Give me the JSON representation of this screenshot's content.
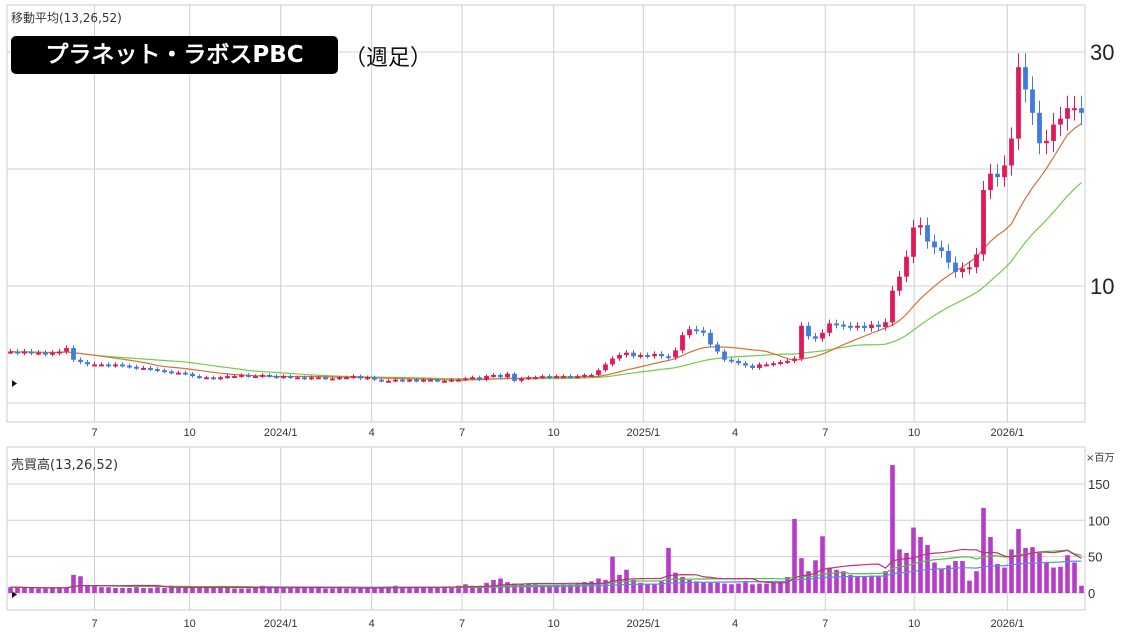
{
  "header": {
    "ma_label": "移動平均(13,26,52)",
    "stock_name": "プラネット・ラボスPBC",
    "period": "（週足）",
    "volume_label": "売買高(13,26,52)",
    "volume_unit": "×百万"
  },
  "colors": {
    "up": "#e0195a",
    "down": "#3f7be0",
    "ma13": "#d8703a",
    "ma26": "#6fcf45",
    "volume": "#b83ccc",
    "vma13": "#c0306a",
    "vma26": "#4fbf3a",
    "vma52": "#4f8fe8"
  },
  "chart_data": [
    {
      "type": "candlestick",
      "title": "プラネット・ラボスPBC（週足）",
      "y_ticks": [
        {
          "value": 30,
          "label": "30"
        },
        {
          "value": 10,
          "label": "10"
        }
      ],
      "ylim": [
        0,
        34
      ],
      "grid": true,
      "moving_averages": [
        13,
        26
      ],
      "x_ticks": [
        {
          "index": 12,
          "label": "7"
        },
        {
          "index": 25.6,
          "label": "10"
        },
        {
          "index": 38.6,
          "label": "2024/1"
        },
        {
          "index": 51.6,
          "label": "4"
        },
        {
          "index": 64.5,
          "label": "7"
        },
        {
          "index": 77.6,
          "label": "10"
        },
        {
          "index": 90.4,
          "label": "2025/1"
        },
        {
          "index": 103.5,
          "label": "4"
        },
        {
          "index": 116.4,
          "label": "7"
        },
        {
          "index": 129.1,
          "label": "10"
        },
        {
          "index": 142.4,
          "label": "2026/1"
        }
      ],
      "close": [
        4.4,
        4.3,
        4.4,
        4.3,
        4.3,
        4.2,
        4.3,
        4.4,
        4.7,
        3.7,
        3.5,
        3.3,
        3.3,
        3.3,
        3.2,
        3.3,
        3.2,
        3.1,
        3.0,
        3.0,
        2.9,
        2.8,
        2.7,
        2.6,
        2.6,
        2.5,
        2.3,
        2.2,
        2.2,
        2.1,
        2.2,
        2.3,
        2.3,
        2.4,
        2.3,
        2.3,
        2.4,
        2.3,
        2.2,
        2.3,
        2.2,
        2.2,
        2.1,
        2.2,
        2.2,
        2.1,
        2.1,
        2.2,
        2.2,
        2.3,
        2.1,
        2.2,
        2.0,
        1.9,
        1.9,
        2.0,
        1.9,
        2.0,
        1.9,
        2.0,
        2.0,
        1.9,
        1.9,
        2.0,
        2.0,
        2.1,
        2.2,
        2.0,
        2.3,
        2.4,
        2.2,
        2.5,
        1.9,
        2.1,
        2.2,
        2.2,
        2.3,
        2.2,
        2.3,
        2.3,
        2.2,
        2.3,
        2.4,
        2.4,
        2.8,
        3.3,
        3.8,
        4.1,
        4.3,
        4.0,
        4.1,
        4.0,
        4.2,
        4.0,
        3.9,
        4.5,
        5.8,
        6.3,
        6.2,
        6.0,
        5.0,
        4.4,
        3.7,
        3.6,
        3.4,
        3.2,
        3.0,
        3.3,
        3.3,
        3.4,
        3.5,
        3.6,
        3.8,
        6.6,
        5.7,
        5.5,
        6.0,
        6.8,
        6.7,
        6.6,
        6.5,
        6.6,
        6.4,
        6.7,
        6.5,
        6.9,
        9.6,
        10.8,
        12.5,
        15.0,
        15.2,
        13.8,
        13.3,
        13.0,
        12.0,
        11.2,
        11.5,
        11.6,
        12.7,
        18.2,
        19.6,
        19.3,
        20.3,
        22.6,
        28.7,
        26.8,
        24.8,
        22.2,
        22.4,
        23.8,
        24.3,
        25.2,
        25.2,
        24.8
      ]
    },
    {
      "type": "bar",
      "title": "売買高(13,26,52)",
      "unit": "×百万",
      "y_ticks": [
        0,
        50,
        100,
        150
      ],
      "ylim": [
        0,
        185
      ],
      "moving_averages": [
        13,
        26,
        52
      ],
      "values": [
        8,
        8,
        7,
        7,
        6,
        6,
        7,
        7,
        8,
        25,
        23,
        10,
        9,
        8,
        8,
        7,
        7,
        7,
        8,
        7,
        7,
        8,
        7,
        10,
        9,
        8,
        7,
        7,
        7,
        7,
        8,
        7,
        6,
        6,
        6,
        8,
        10,
        9,
        7,
        7,
        7,
        8,
        8,
        7,
        7,
        6,
        6,
        7,
        6,
        6,
        7,
        8,
        7,
        8,
        9,
        10,
        8,
        8,
        7,
        7,
        8,
        8,
        9,
        9,
        10,
        12,
        10,
        10,
        14,
        18,
        20,
        15,
        13,
        12,
        13,
        12,
        11,
        10,
        11,
        12,
        12,
        14,
        15,
        16,
        20,
        18,
        50,
        25,
        32,
        18,
        14,
        12,
        12,
        16,
        62,
        28,
        22,
        18,
        16,
        15,
        14,
        14,
        13,
        12,
        13,
        16,
        12,
        13,
        13,
        14,
        15,
        22,
        102,
        48,
        30,
        45,
        78,
        35,
        32,
        30,
        25,
        22,
        22,
        24,
        24,
        30,
        176,
        60,
        55,
        90,
        77,
        66,
        42,
        33,
        38,
        44,
        44,
        17,
        30,
        117,
        77,
        40,
        35,
        60,
        88,
        62,
        63,
        55,
        42,
        35,
        36,
        52,
        42,
        10
      ]
    }
  ]
}
